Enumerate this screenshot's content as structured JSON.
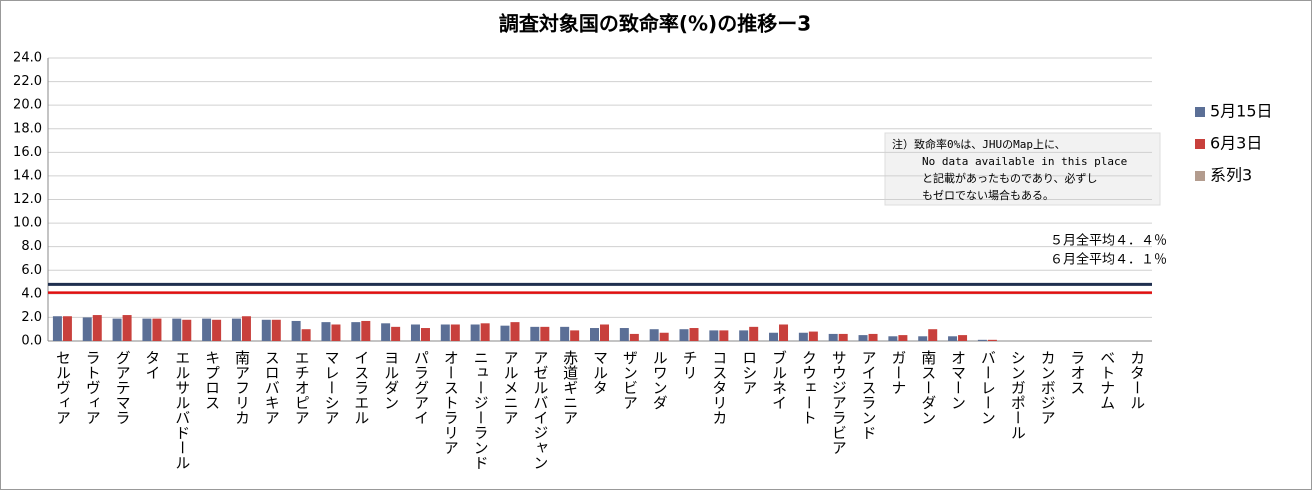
{
  "chart_data": {
    "type": "bar",
    "title": "調査対象国の致命率(%)の推移ー3",
    "categories": [
      "セルヴィア",
      "ラトヴィア",
      "グアテマラ",
      "タイ",
      "エルサルバドール",
      "キプロス",
      "南アフリカ",
      "スロバキア",
      "エチオピア",
      "マレーシア",
      "イスラエル",
      "ヨルダン",
      "パラグアイ",
      "オーストラリア",
      "ニュージーランド",
      "アルメニア",
      "アゼルバイジャン",
      "赤道ギニア",
      "マルタ",
      "ザンビア",
      "ルワンダ",
      "チリ",
      "コスタリカ",
      "ロシア",
      "ブルネイ",
      "クウェート",
      "サウジアラビア",
      "アイスランド",
      "ガーナ",
      "南スーダン",
      "オマーン",
      "バーレーン",
      "シンガポール",
      "カンボジア",
      "ラオス",
      "ベトナム",
      "カタール"
    ],
    "series": [
      {
        "name": "5月15日",
        "color": "#5b6f96",
        "values": [
          2.1,
          2.0,
          1.9,
          1.9,
          1.9,
          1.9,
          1.9,
          1.8,
          1.7,
          1.6,
          1.6,
          1.5,
          1.4,
          1.4,
          1.4,
          1.3,
          1.2,
          1.2,
          1.1,
          1.1,
          1.0,
          1.0,
          0.9,
          0.9,
          0.7,
          0.7,
          0.6,
          0.5,
          0.4,
          0.4,
          0.4,
          0.1,
          0,
          0,
          0,
          0,
          0
        ]
      },
      {
        "name": "6月3日",
        "color": "#c8403c",
        "values": [
          2.1,
          2.2,
          2.2,
          1.9,
          1.8,
          1.8,
          2.1,
          1.8,
          1.0,
          1.4,
          1.7,
          1.2,
          1.1,
          1.4,
          1.5,
          1.6,
          1.2,
          0.9,
          1.4,
          0.6,
          0.7,
          1.1,
          0.9,
          1.2,
          1.4,
          0.8,
          0.6,
          0.6,
          0.5,
          1.0,
          0.5,
          0.1,
          0,
          0,
          0,
          0,
          0
        ]
      },
      {
        "name": "系列3",
        "color": "#b39c8e",
        "values": [
          4.8,
          4.8,
          4.8,
          4.8,
          4.8,
          4.8,
          4.8,
          4.8,
          4.8,
          4.8,
          4.8,
          4.8,
          4.8,
          4.8,
          4.8,
          4.8,
          4.8,
          4.8,
          4.8,
          4.8,
          4.8,
          4.8,
          4.8,
          4.8,
          4.8,
          4.8,
          4.8,
          4.8,
          4.8,
          4.8,
          4.8,
          4.8,
          4.8,
          4.8,
          4.8,
          4.8,
          4.8
        ]
      }
    ],
    "reference_lines": [
      {
        "value": 4.1,
        "color": "#e01010"
      }
    ],
    "ylim": [
      0,
      24
    ],
    "yticks": [
      {
        "value": 0,
        "label": "0.0"
      },
      {
        "value": 2,
        "label": "2.0"
      },
      {
        "value": 4,
        "label": "4.0"
      },
      {
        "value": 6,
        "label": "6.0"
      },
      {
        "value": 8,
        "label": "8.0"
      },
      {
        "value": 10,
        "label": "10.0"
      },
      {
        "value": 12,
        "label": "12.0"
      },
      {
        "value": 14,
        "label": "14.0"
      },
      {
        "value": 16,
        "label": "16.0"
      },
      {
        "value": 18,
        "label": "18.0"
      },
      {
        "value": 20,
        "label": "20.0"
      },
      {
        "value": 22,
        "label": "22.0"
      },
      {
        "value": 24,
        "label": "24.0"
      }
    ],
    "grid": true,
    "legend": "right",
    "annotations": [
      "５月全平均４．４％",
      "６月全平均４．１％"
    ],
    "note": [
      "注）致命率0%は、JHUのMap上に、",
      "No data available in this place",
      "と記載があったものであり、必ずし",
      "もゼロでない場合もある。"
    ]
  }
}
